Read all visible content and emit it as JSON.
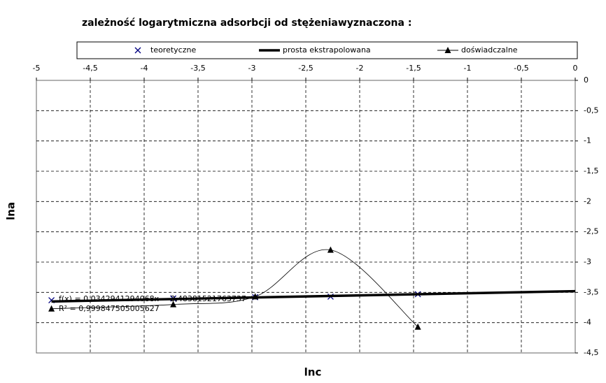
{
  "chart_data": {
    "type": "scatter",
    "title": "zależność logarytmiczna adsorbcji od stężeniawyznaczona :",
    "x_label": "lnc",
    "y_label": "lna",
    "xlim": [
      -5,
      0
    ],
    "ylim": [
      -4.5,
      0
    ],
    "xticks": [
      -5,
      {
        "value": -4.5,
        "label": "-4,5"
      },
      -4,
      {
        "value": -3.5,
        "label": "-3,5"
      },
      -3,
      {
        "value": -2.5,
        "label": "-2,5"
      },
      -2,
      {
        "value": -1.5,
        "label": "-1,5"
      },
      -1,
      {
        "value": -0.5,
        "label": "-0,5"
      },
      0
    ],
    "yticks": [
      0,
      {
        "value": -0.5,
        "label": "-0,5"
      },
      -1,
      {
        "value": -1.5,
        "label": "-1,5"
      },
      -2,
      {
        "value": -2.5,
        "label": "-2,5"
      },
      -3,
      {
        "value": -3.5,
        "label": "-3,5"
      },
      -4,
      {
        "value": -4.5,
        "label": "-4,5"
      }
    ],
    "grid": true,
    "series": [
      {
        "name": "teoretyczne",
        "color": "#000080",
        "marker": "x",
        "x": [
          -4.86,
          -3.73,
          -2.97,
          -2.27,
          -1.46
        ],
        "values": [
          -3.63,
          -3.6,
          -3.58,
          -3.57,
          -3.53
        ]
      },
      {
        "name": "prosta ekstrapolowana",
        "color": "#000000",
        "marker": "line",
        "x": [
          -4.86,
          0
        ],
        "values": [
          -3.65,
          -3.48
        ]
      },
      {
        "name": "doświadczalne",
        "color": "#000000",
        "marker": "triangle",
        "x": [
          -4.86,
          -3.73,
          -2.97,
          -2.27,
          -1.46
        ],
        "values": [
          -3.77,
          -3.7,
          -3.57,
          -2.8,
          -4.07
        ]
      }
    ],
    "annotations": [
      "f(x) = 0,0342941294068x − 3,48381521763737",
      "R² = 0,999847505005627"
    ]
  }
}
